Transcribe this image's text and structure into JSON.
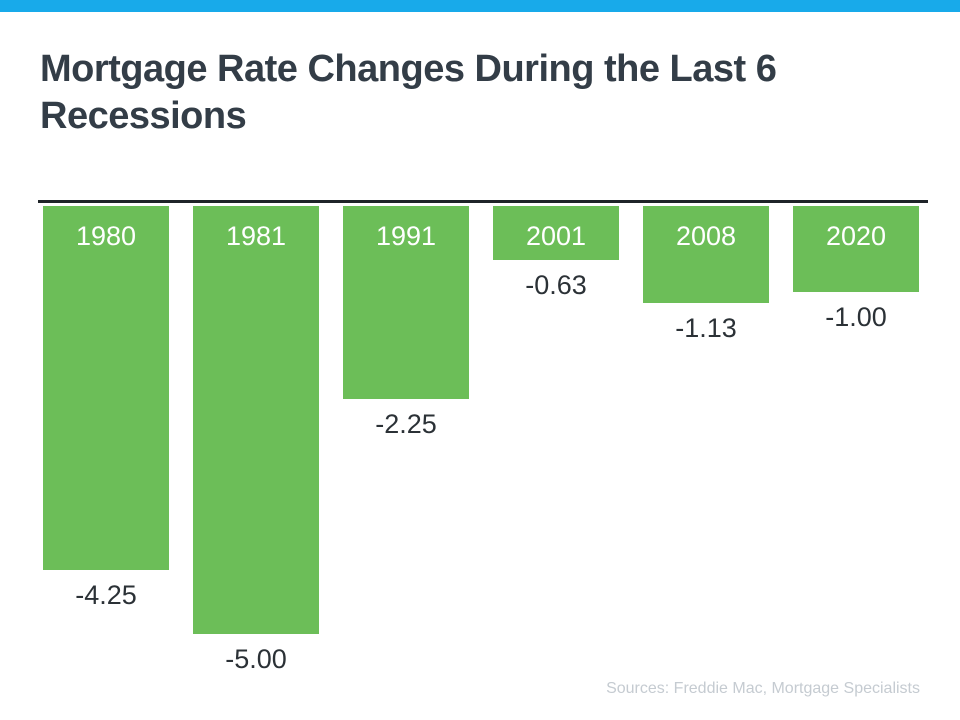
{
  "header": {
    "title_line1": "Mortgage Rate Changes During the Last 6",
    "title_line2": "Recessions"
  },
  "colors": {
    "accent_blue": "#18aaea",
    "bar_green": "#6cbe58",
    "title_text": "#333d47",
    "value_text": "#2b3136",
    "axis_line": "#1f2429",
    "sources_text": "#c5cbd1",
    "year_text": "#ffffff"
  },
  "chart_data": {
    "type": "bar",
    "title": "Mortgage Rate Changes During the Last 6 Recessions",
    "categories": [
      "1980",
      "1981",
      "1991",
      "2001",
      "2008",
      "2020"
    ],
    "values": [
      -4.25,
      -5.0,
      -2.25,
      -0.63,
      -1.13,
      -1.0
    ],
    "value_labels": [
      "-4.25",
      "-5.00",
      "-2.25",
      "-0.63",
      "-1.13",
      "-1.00"
    ],
    "xlabel": "",
    "ylabel": "",
    "ylim": [
      -5.0,
      0
    ],
    "grid": false,
    "legend": null,
    "orientation": "vertical",
    "baseline_position": "top",
    "bar_color": "#6cbe58",
    "category_label_position": "inside-bar-top",
    "value_label_position": "below-bar"
  },
  "footer": {
    "sources": "Sources: Freddie Mac, Mortgage Specialists"
  }
}
